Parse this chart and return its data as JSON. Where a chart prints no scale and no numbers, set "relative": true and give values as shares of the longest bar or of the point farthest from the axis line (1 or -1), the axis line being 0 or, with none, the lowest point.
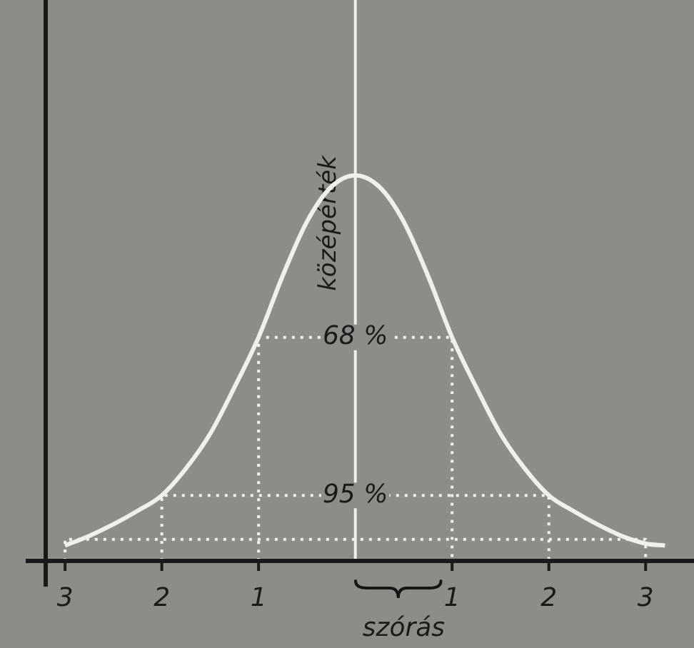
{
  "chart_data": {
    "type": "line",
    "relative": true,
    "legend": false,
    "grid": false,
    "marker": "none",
    "xlim": [
      -3.2,
      3.5
    ],
    "xticks": [
      {
        "value": -3,
        "label": "3"
      },
      {
        "value": -2,
        "label": "2"
      },
      {
        "value": -1,
        "label": "1"
      },
      {
        "value": 1,
        "label": "1"
      },
      {
        "value": 2,
        "label": "2"
      },
      {
        "value": 3,
        "label": "3"
      }
    ],
    "series": [
      {
        "color": "#f0f0ea",
        "line_style": "solid",
        "x": [
          -3.0,
          -2.75,
          -2.5,
          -2.25,
          -2,
          -1.75,
          -1.5,
          -1.25,
          -1,
          -0.75,
          -0.5,
          -0.25,
          0,
          0.25,
          0.5,
          0.75,
          1,
          1.25,
          1.5,
          1.75,
          2,
          2.25,
          2.5,
          2.75,
          3.0,
          3.2
        ],
        "values": [
          0.04,
          0.065,
          0.095,
          0.13,
          0.17,
          0.24,
          0.33,
          0.45,
          0.58,
          0.74,
          0.88,
          0.97,
          1,
          0.97,
          0.88,
          0.74,
          0.58,
          0.45,
          0.33,
          0.24,
          0.17,
          0.13,
          0.095,
          0.065,
          0.045,
          0.04
        ]
      },
      {
        "name": "68 %",
        "color": "#f0f0ea",
        "line_style": "dotted",
        "x": [
          -1,
          -1,
          1,
          1
        ],
        "values": [
          0,
          0.58,
          0.58,
          0
        ]
      },
      {
        "name": "95 %",
        "color": "#f0f0ea",
        "line_style": "dotted",
        "x": [
          -2,
          -2,
          2,
          2
        ],
        "values": [
          0,
          0.17,
          0.17,
          0
        ]
      },
      {
        "color": "#f0f0ea",
        "line_style": "dotted",
        "x": [
          -3,
          -3,
          3,
          3
        ],
        "values": [
          0,
          0.056,
          0.056,
          0
        ]
      }
    ],
    "ref_lines": [
      {
        "axis": "x",
        "value": 0,
        "label": "középérték",
        "color": "#f0f0ea",
        "line_style": "solid"
      }
    ],
    "annotations": [
      "szórás"
    ]
  }
}
